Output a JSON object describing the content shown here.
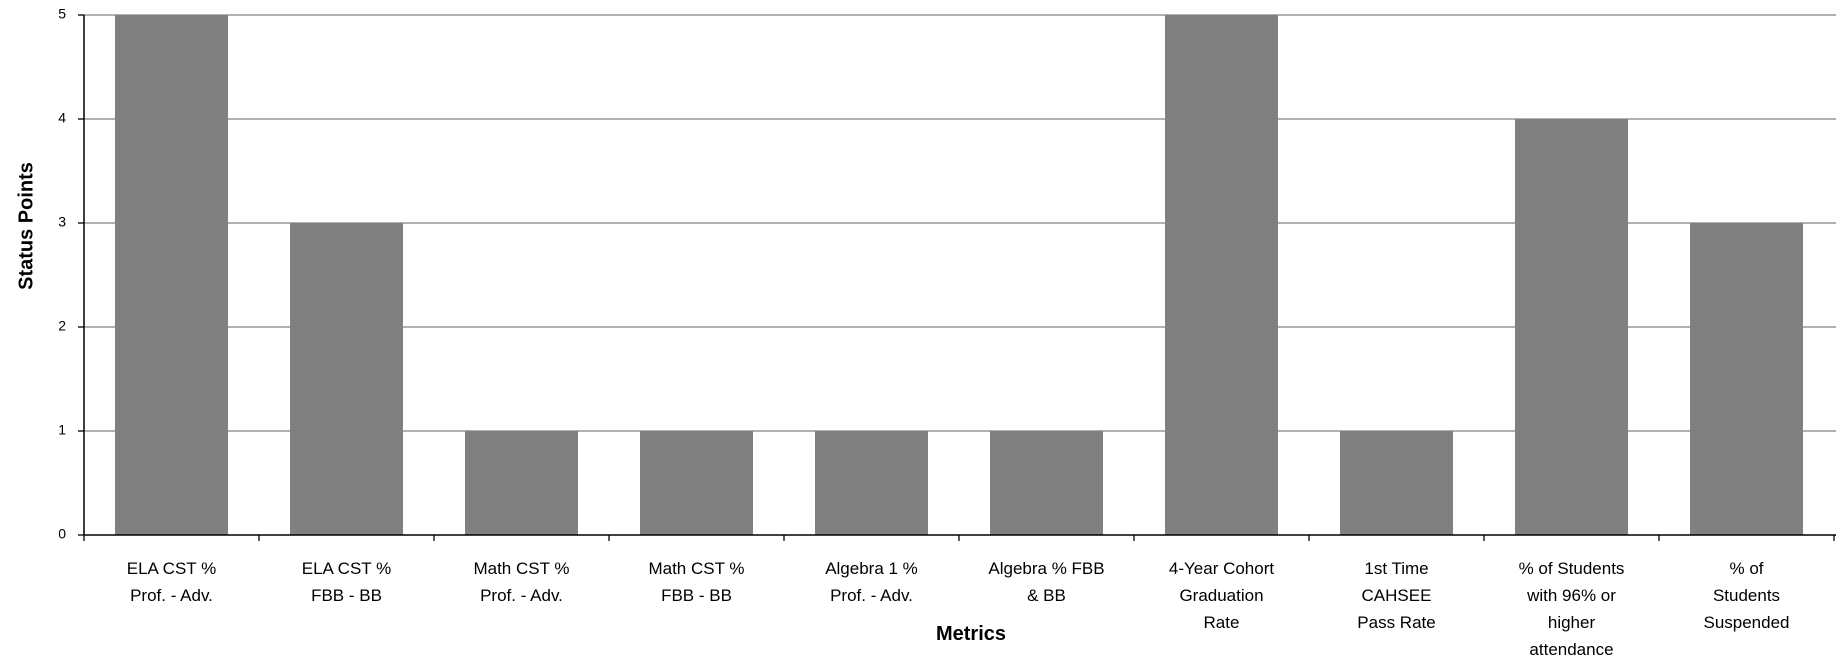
{
  "colors": {
    "bar": "#808080",
    "grid": "#808080",
    "axis": "#000000"
  },
  "chart_data": {
    "type": "bar",
    "title": "",
    "xlabel": "Metrics",
    "ylabel": "Status Points",
    "ylim": [
      0,
      5
    ],
    "yticks": [
      "0",
      "1",
      "2",
      "3",
      "4",
      "5"
    ],
    "grid": true,
    "legend": "none",
    "categories": [
      "ELA CST % Prof. - Adv.",
      "ELA CST % FBB - BB",
      "Math CST % Prof. - Adv.",
      "Math CST % FBB - BB",
      "Algebra 1 % Prof. - Adv.",
      "Algebra % FBB & BB",
      "4-Year Cohort Graduation Rate",
      "1st Time CAHSEE Pass Rate",
      "% of Students with 96% or higher attendance",
      "% of Students Suspended"
    ],
    "category_lines": [
      [
        "ELA CST %",
        "Prof. - Adv."
      ],
      [
        "ELA CST %",
        "FBB - BB"
      ],
      [
        "Math CST %",
        "Prof. - Adv."
      ],
      [
        "Math CST %",
        "FBB - BB"
      ],
      [
        "Algebra 1 %",
        "Prof. - Adv."
      ],
      [
        "Algebra % FBB",
        "& BB"
      ],
      [
        "4-Year Cohort",
        "Graduation",
        "Rate"
      ],
      [
        "1st Time",
        "CAHSEE",
        "Pass Rate"
      ],
      [
        "% of Students",
        "with 96% or",
        "higher",
        "attendance"
      ],
      [
        "% of",
        "Students",
        "Suspended"
      ]
    ],
    "values": [
      5,
      3,
      1,
      1,
      1,
      1,
      5,
      1,
      4,
      3
    ]
  }
}
